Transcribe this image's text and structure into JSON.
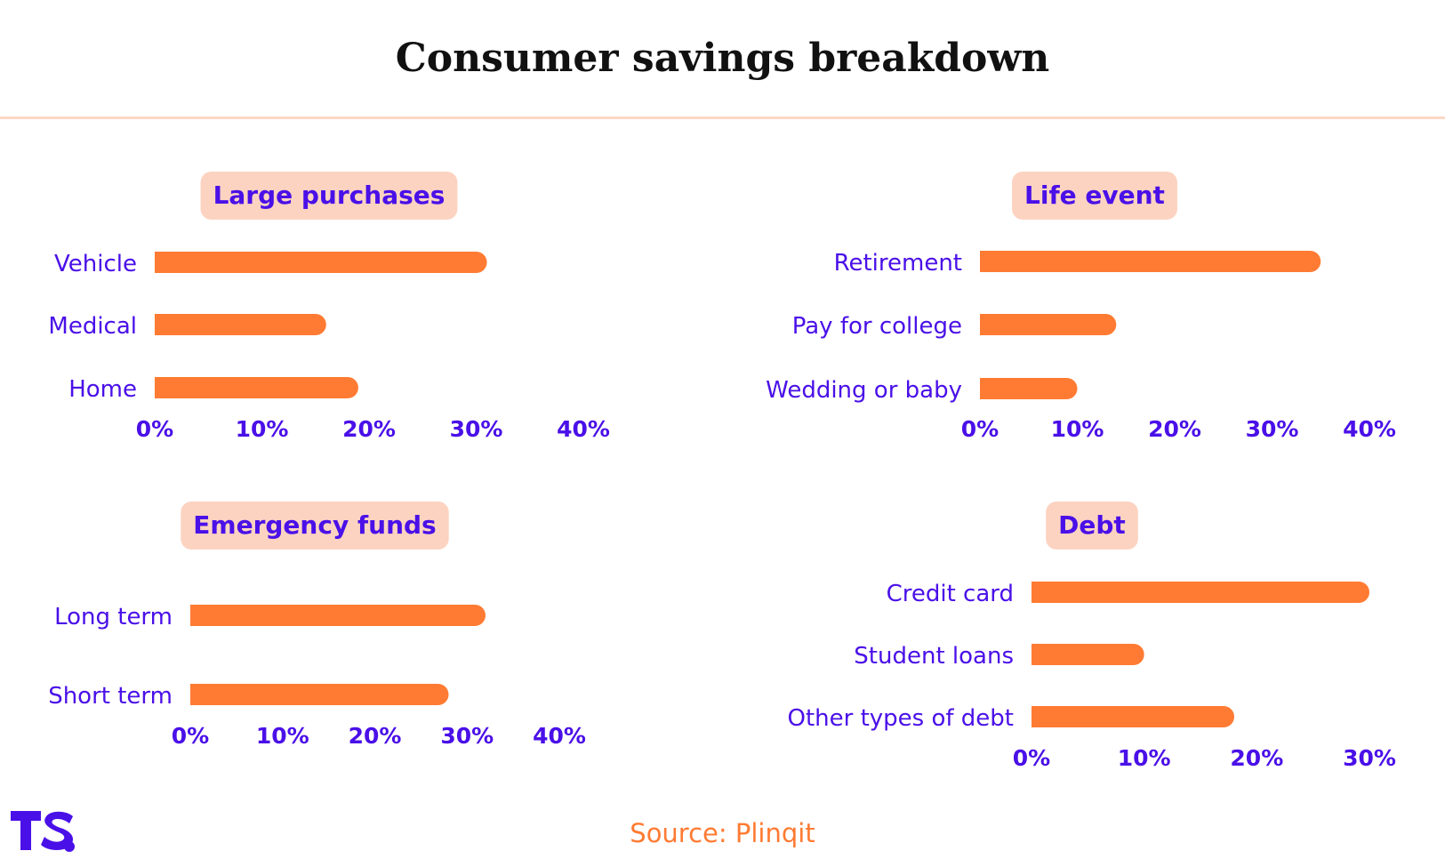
{
  "title": "Consumer savings breakdown",
  "source": "Source: Plinqit",
  "colors": {
    "bar": "#ff7b33",
    "text": "#4a10e8",
    "pill": "#fcd3c1",
    "rule": "#fcd7c6",
    "title": "#111111",
    "source": "#ff7b33"
  },
  "chart_data": [
    {
      "type": "bar",
      "orientation": "horizontal",
      "title": "Large purchases",
      "categories": [
        "Vehicle",
        "Medical",
        "Home"
      ],
      "values": [
        31,
        16,
        19
      ],
      "xlim": [
        0,
        40
      ],
      "ticks": [
        "0%",
        "10%",
        "20%",
        "30%",
        "40%"
      ]
    },
    {
      "type": "bar",
      "orientation": "horizontal",
      "title": "Life event",
      "categories": [
        "Retirement",
        "Pay for college",
        "Wedding or baby"
      ],
      "values": [
        35,
        14,
        10
      ],
      "xlim": [
        0,
        40
      ],
      "ticks": [
        "0%",
        "10%",
        "20%",
        "30%",
        "40%"
      ]
    },
    {
      "type": "bar",
      "orientation": "horizontal",
      "title": "Emergency funds",
      "categories": [
        "Long term",
        "Short term"
      ],
      "values": [
        32,
        28
      ],
      "xlim": [
        0,
        40
      ],
      "ticks": [
        "0%",
        "10%",
        "20%",
        "30%",
        "40%"
      ]
    },
    {
      "type": "bar",
      "orientation": "horizontal",
      "title": "Debt",
      "categories": [
        "Credit card",
        "Student loans",
        "Other types of debt"
      ],
      "values": [
        30,
        10,
        18
      ],
      "xlim": [
        0,
        30
      ],
      "ticks": [
        "0%",
        "10%",
        "20%",
        "30%"
      ]
    }
  ]
}
